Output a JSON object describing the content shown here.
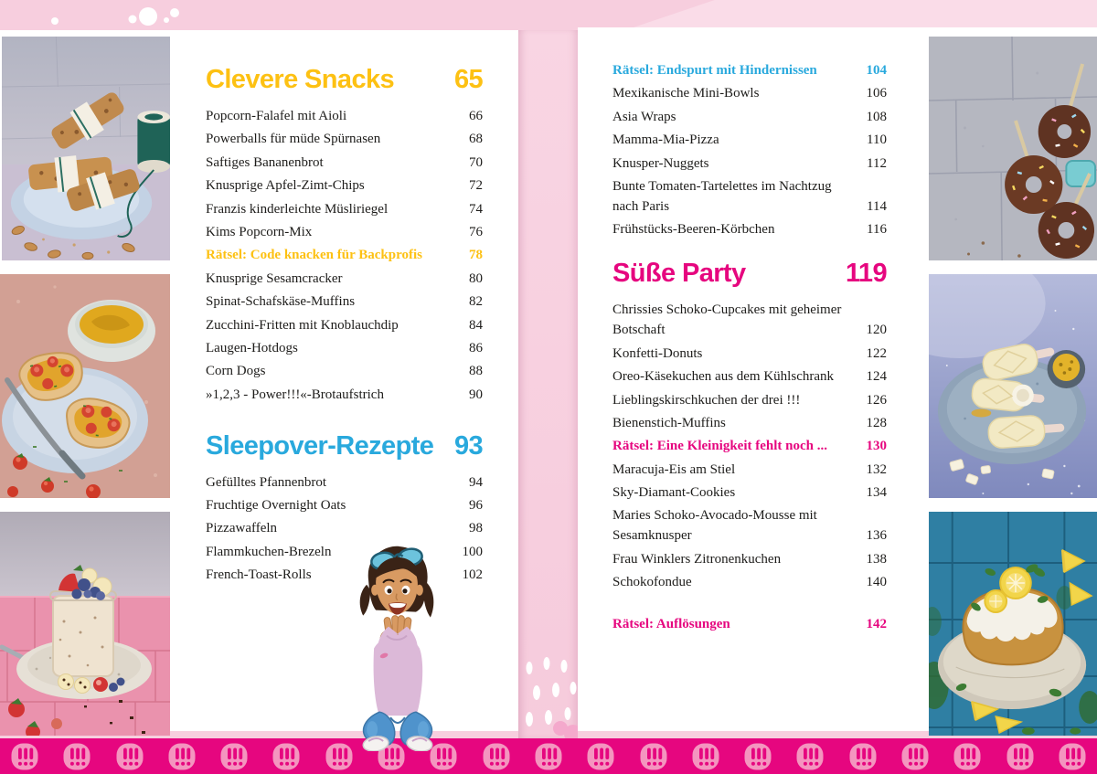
{
  "document": {
    "type": "cookbook-table-of-contents",
    "language": "de"
  },
  "colors": {
    "yellow": "#fdc113",
    "cyan": "#29a9dd",
    "magenta": "#e6067f",
    "text": "#1d1c1a",
    "bar": "#e6067f",
    "bar_icon": "#f495bf"
  },
  "left_page": {
    "sections": [
      {
        "title": "Clevere Snacks",
        "page": "65",
        "accent": "yellow",
        "items": [
          {
            "label": "Popcorn-Falafel mit Aioli",
            "page": "66"
          },
          {
            "label": "Powerballs für müde Spürnasen",
            "page": "68"
          },
          {
            "label": "Saftiges Bananenbrot",
            "page": "70"
          },
          {
            "label": "Knusprige Apfel-Zimt-Chips",
            "page": "72"
          },
          {
            "label": "Franzis kinderleichte Müsliriegel",
            "page": "74"
          },
          {
            "label": "Kims Popcorn-Mix",
            "page": "76"
          },
          {
            "label": "Rätsel: Code knacken für Backprofis",
            "page": "78",
            "highlight": "yellow"
          },
          {
            "label": "Knusprige Sesamcracker",
            "page": "80"
          },
          {
            "label": "Spinat-Schafskäse-Muffins",
            "page": "82"
          },
          {
            "label": "Zucchini-Fritten mit Knoblauchdip",
            "page": "84"
          },
          {
            "label": "Laugen-Hotdogs",
            "page": "86"
          },
          {
            "label": "Corn Dogs",
            "page": "88"
          },
          {
            "label": "»1,2,3 - Power!!!«-Brotaufstrich",
            "page": "90"
          }
        ]
      },
      {
        "title": "Sleepover-Rezepte",
        "page": "93",
        "accent": "cyan",
        "items": [
          {
            "label": "Gefülltes Pfannenbrot",
            "page": "94"
          },
          {
            "label": "Fruchtige Overnight Oats",
            "page": "96"
          },
          {
            "label": "Pizzawaffeln",
            "page": "98"
          },
          {
            "label": "Flammkuchen-Brezeln",
            "page": "100"
          },
          {
            "label": "French-Toast-Rolls",
            "page": "102"
          }
        ]
      }
    ]
  },
  "right_page": {
    "sections": [
      {
        "items": [
          {
            "label": "Rätsel: Endspurt mit Hindernissen",
            "page": "104",
            "highlight": "cyan"
          },
          {
            "label": "Mexikanische Mini-Bowls",
            "page": "106"
          },
          {
            "label": "Asia Wraps",
            "page": "108"
          },
          {
            "label": "Mamma-Mia-Pizza",
            "page": "110"
          },
          {
            "label": "Knusper-Nuggets",
            "page": "112"
          },
          {
            "label": "Bunte Tomaten-Tartelettes im Nachtzug nach Paris",
            "page": "114"
          },
          {
            "label": "Frühstücks-Beeren-Körbchen",
            "page": "116"
          }
        ]
      },
      {
        "title": "Süße Party",
        "page": "119",
        "accent": "magenta",
        "items": [
          {
            "label": "Chrissies Schoko-Cupcakes mit geheimer Botschaft",
            "page": "120"
          },
          {
            "label": "Konfetti-Donuts",
            "page": "122"
          },
          {
            "label": "Oreo-Käsekuchen aus dem Kühlschrank",
            "page": "124"
          },
          {
            "label": "Lieblingskirschkuchen der drei !!!",
            "page": "126"
          },
          {
            "label": "Bienenstich-Muffins",
            "page": "128"
          },
          {
            "label": "Rätsel: Eine Kleinigkeit fehlt noch ...",
            "page": "130",
            "highlight": "magenta"
          },
          {
            "label": "Maracuja-Eis am Stiel",
            "page": "132"
          },
          {
            "label": "Sky-Diamant-Cookies",
            "page": "134"
          },
          {
            "label": "Maries Schoko-Avocado-Mousse mit Sesamknusper",
            "page": "136"
          },
          {
            "label": "Frau Winklers Zitronenkuchen",
            "page": "138"
          },
          {
            "label": "Schokofondue",
            "page": "140"
          }
        ]
      }
    ],
    "footer_item": {
      "label": "Rätsel: Auflösungen",
      "page": "142",
      "highlight": "magenta"
    }
  },
  "photos": {
    "left": [
      "granola-bars-photo",
      "tomato-toasts-photo",
      "overnight-oats-photo"
    ],
    "right": [
      "chocolate-donut-pops-photo",
      "white-chocolate-ice-pops-photo",
      "lemon-loaf-cake-photo"
    ]
  },
  "bottom_bar": {
    "icon": "triple-exclamation-badge",
    "repeat": 21
  },
  "mascot": {
    "name": "girl-detective-illustration"
  }
}
